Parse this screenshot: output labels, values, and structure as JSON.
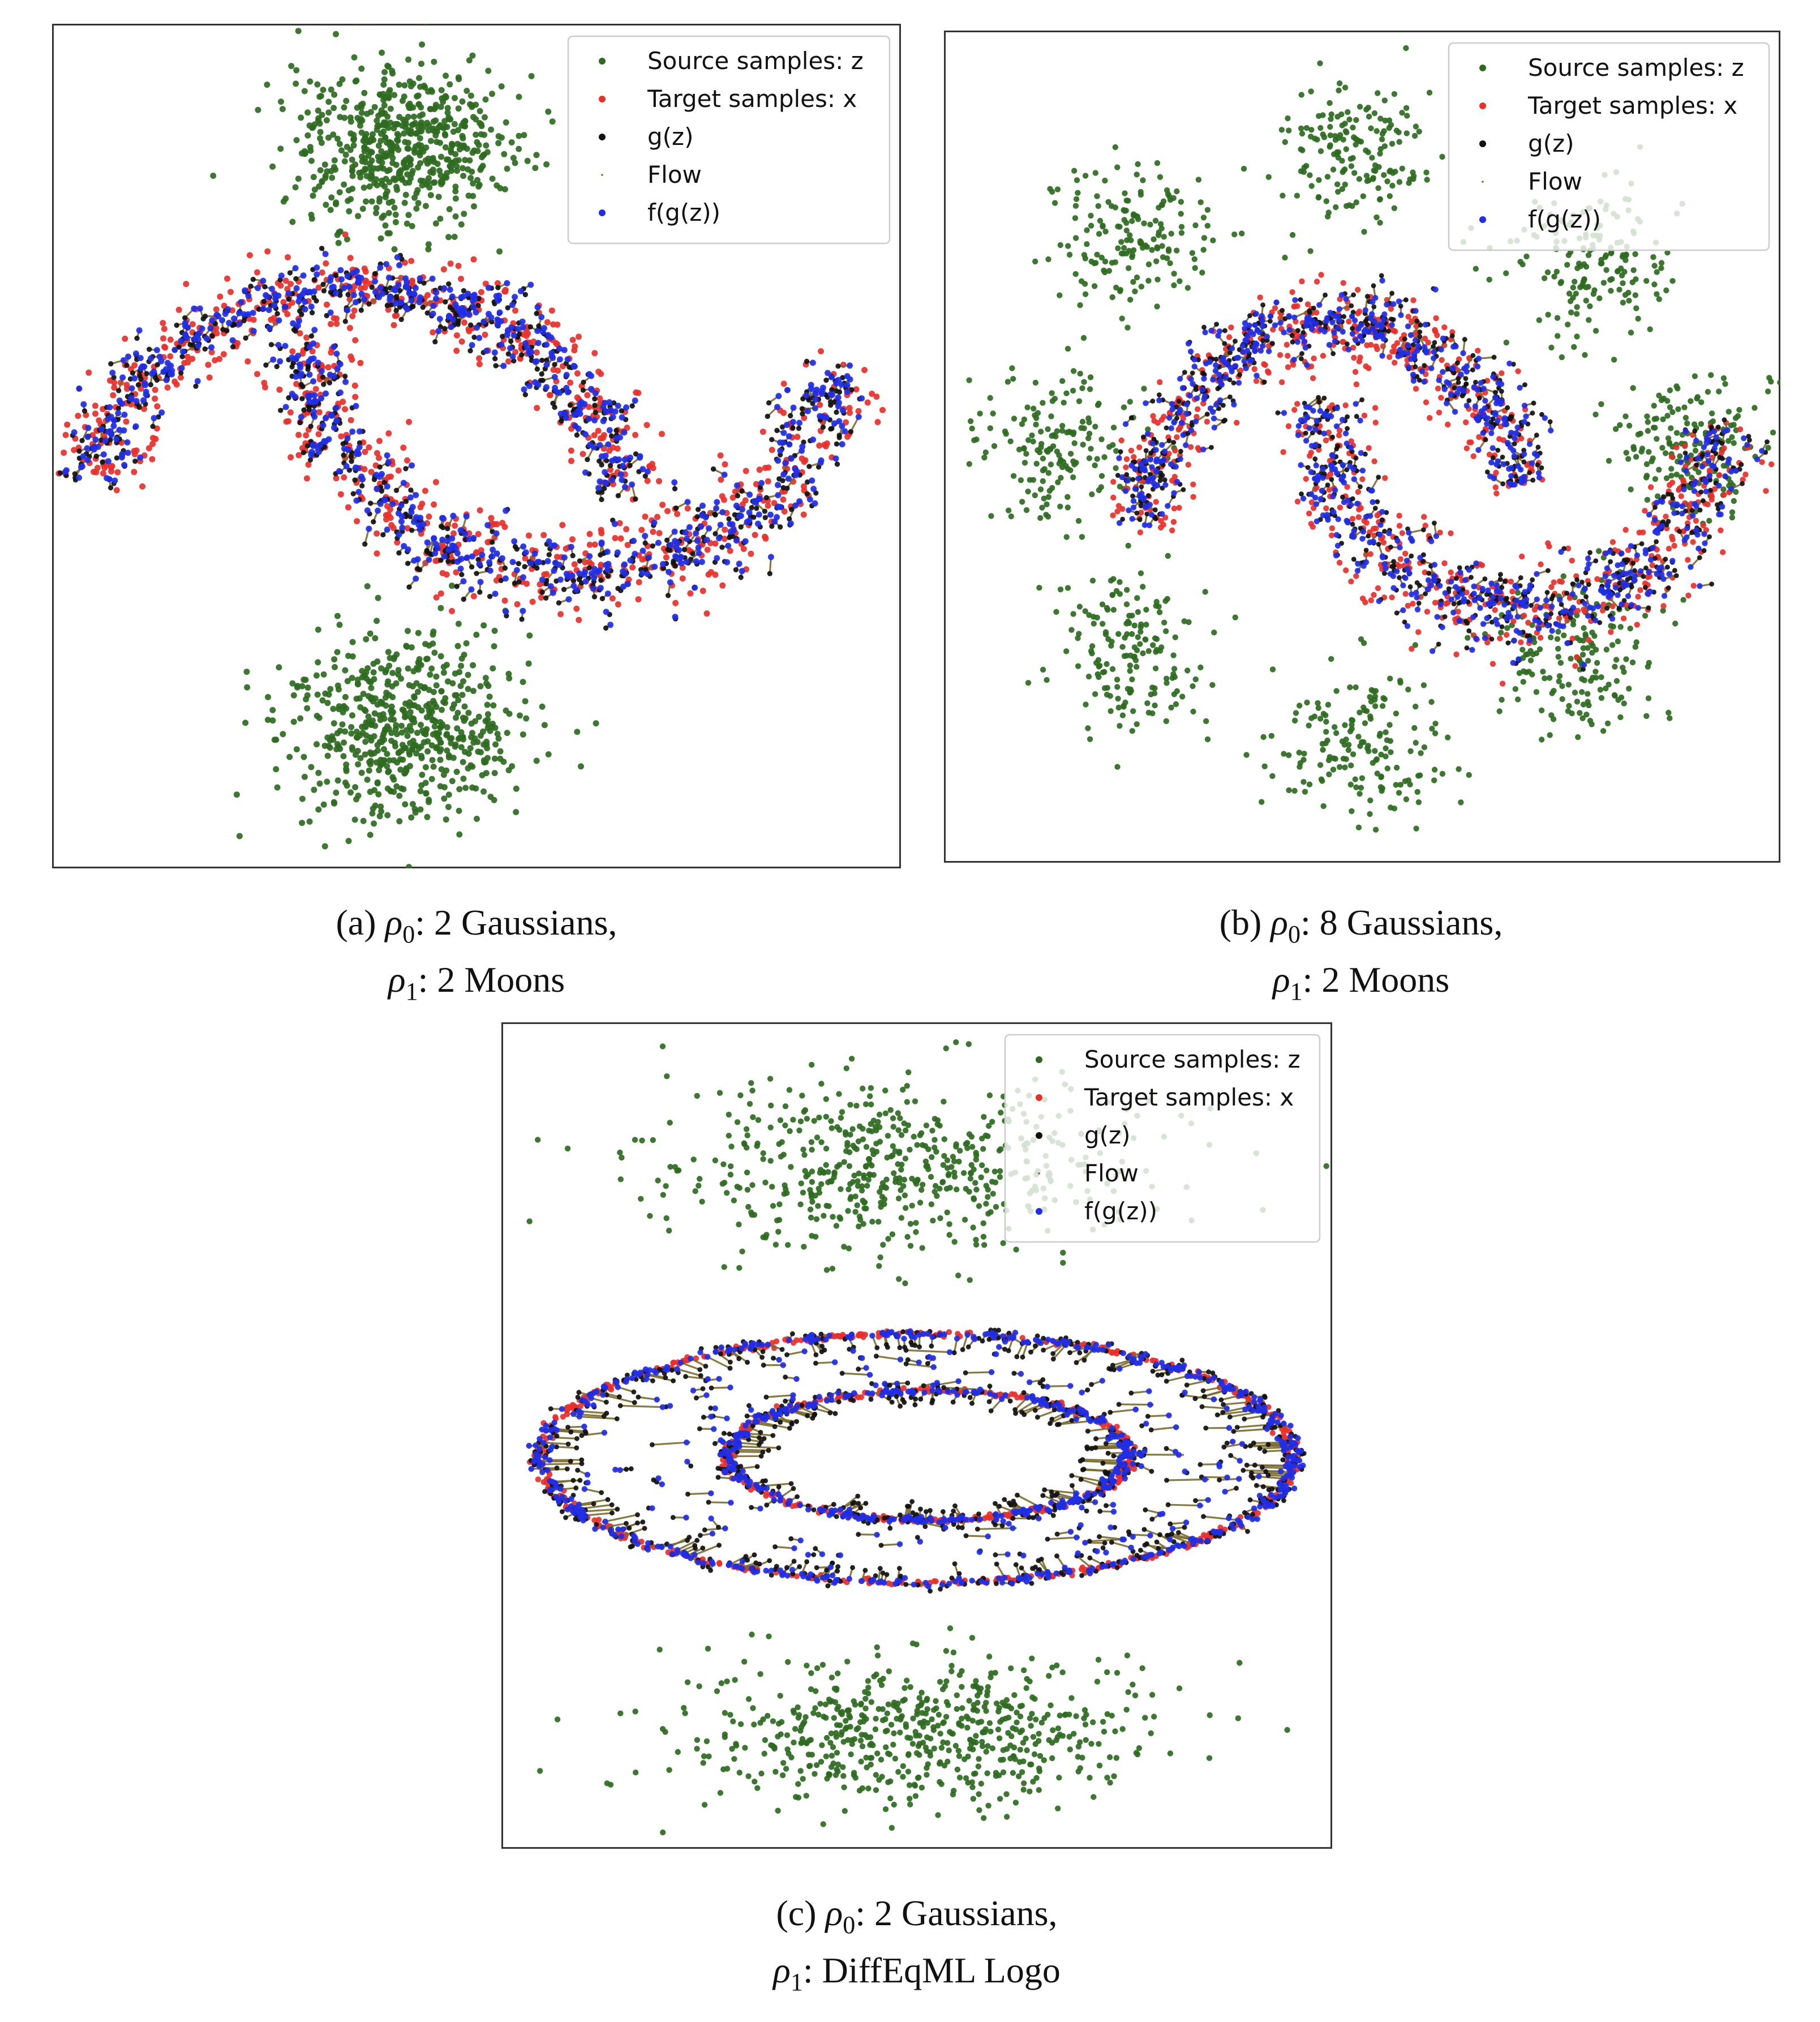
{
  "legend": {
    "entries": [
      {
        "label": "Source samples: z",
        "color": "#2e6b1f",
        "marker": "dot"
      },
      {
        "label": " Target samples: x",
        "color": "#e8302a",
        "marker": "dot"
      },
      {
        "label": "g(z)",
        "color": "#111111",
        "marker": "dot"
      },
      {
        "label": "Flow",
        "color": "#7a6a2a",
        "marker": "tiny"
      },
      {
        "label": "f(g(z))",
        "color": "#1f2ee8",
        "marker": "dot"
      }
    ]
  },
  "captions": {
    "a": {
      "tag": "(a)",
      "sym0": "ρ",
      "sub0": "0",
      "text0": ": 2 Gaussians,",
      "sym1": "ρ",
      "sub1": "1",
      "text1": ": 2 Moons"
    },
    "b": {
      "tag": "(b)",
      "sym0": "ρ",
      "sub0": "0",
      "text0": ": 8 Gaussians,",
      "sym1": "ρ",
      "sub1": "1",
      "text1": ": 2 Moons"
    },
    "c": {
      "tag": "(c)",
      "sym0": "ρ",
      "sub0": "0",
      "text0": ": 2 Gaussians,",
      "sym1": "ρ",
      "sub1": "1",
      "text1": ": DiffEqML Logo"
    }
  },
  "chart_data": [
    {
      "type": "scatter",
      "source": {
        "distribution": "gaussian-mixture",
        "centers": [
          [
            0,
            2.2
          ],
          [
            0,
            -2.2
          ]
        ],
        "std": [
          0.45,
          0.3
        ]
      },
      "target": {
        "distribution": "two-moons"
      },
      "series": [
        "Source samples: z",
        " Target samples: x",
        "g(z)",
        "Flow",
        "f(g(z))"
      ],
      "xlim": [
        -3,
        3
      ],
      "ylim": [
        -3,
        3
      ],
      "grid": false,
      "legend": "top-right"
    },
    {
      "type": "scatter",
      "source": {
        "distribution": "gaussian-mixture",
        "n_components": 8,
        "radius": 2.6,
        "std": 0.3
      },
      "target": {
        "distribution": "two-moons"
      },
      "series": [
        "Source samples: z",
        " Target samples: x",
        "g(z)",
        "Flow",
        "f(g(z))"
      ],
      "xlim": [
        -3.5,
        3.5
      ],
      "ylim": [
        -3.5,
        3.5
      ],
      "grid": false,
      "legend": "top-right"
    },
    {
      "type": "scatter",
      "source": {
        "distribution": "gaussian-mixture",
        "centers": [
          [
            0,
            2.3
          ],
          [
            0,
            -2.3
          ]
        ],
        "std": [
          0.9,
          0.25
        ]
      },
      "target": {
        "distribution": "diffeqml-logo",
        "shape": "two concentric ellipses"
      },
      "series": [
        "Source samples: z",
        " Target samples: x",
        "g(z)",
        "Flow",
        "f(g(z))"
      ],
      "xlim": [
        -3,
        3
      ],
      "ylim": [
        -3,
        3
      ],
      "grid": false,
      "legend": "top-right"
    }
  ]
}
